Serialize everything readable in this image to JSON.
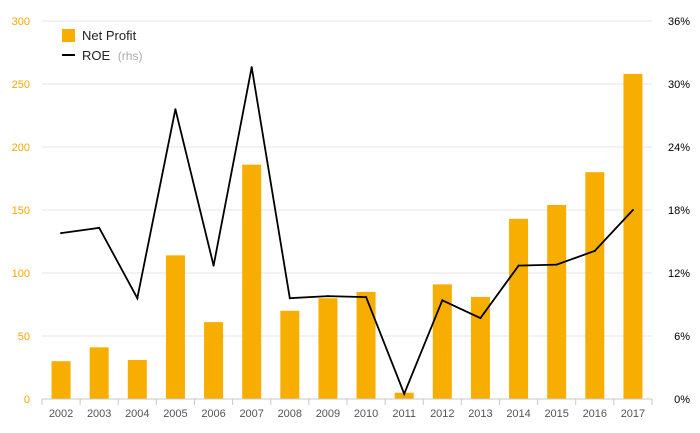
{
  "chart_data": {
    "type": "bar+line",
    "categories": [
      "2002",
      "2003",
      "2004",
      "2005",
      "2006",
      "2007",
      "2008",
      "2009",
      "2010",
      "2011",
      "2012",
      "2013",
      "2014",
      "2015",
      "2016",
      "2017"
    ],
    "series": [
      {
        "name": "Net Profit",
        "type": "bar",
        "axis": "left",
        "color": "#f7ae00",
        "values": [
          30,
          41,
          31,
          114,
          61,
          186,
          70,
          80,
          85,
          5,
          91,
          81,
          143,
          154,
          180,
          258
        ]
      },
      {
        "name": "ROE",
        "name_suffix": "(rhs)",
        "type": "line",
        "axis": "right",
        "color": "#000000",
        "values": [
          15.8,
          16.3,
          9.6,
          27.6,
          12.7,
          31.6,
          9.6,
          9.8,
          9.7,
          0.5,
          9.4,
          7.7,
          12.7,
          12.8,
          14.1,
          18.0
        ]
      }
    ],
    "y_left": {
      "range": [
        0,
        300
      ],
      "ticks": [
        "0",
        "50",
        "100",
        "150",
        "200",
        "250",
        "300"
      ],
      "color": "#f5a800"
    },
    "y_right": {
      "range": [
        0,
        36
      ],
      "ticks": [
        "0%",
        "6%",
        "12%",
        "18%",
        "24%",
        "30%",
        "36%"
      ],
      "color": "#000000"
    },
    "grid": true,
    "legend_position": "top-left"
  }
}
